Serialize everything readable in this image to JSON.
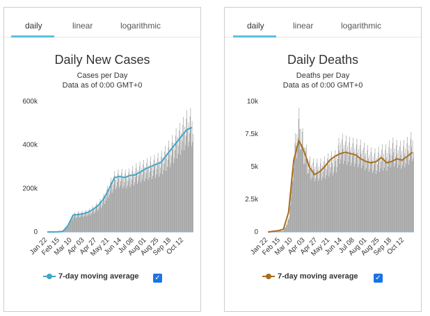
{
  "tabs": [
    "daily",
    "linear",
    "logarithmic"
  ],
  "legend_label": "7-day moving average",
  "checkbox_mark": "✓",
  "colors": {
    "tab_active": "#5bc0de",
    "cases_line": "#41a6c8",
    "deaths_line": "#a86e1e",
    "bars": "#999999",
    "checkbox": "#1a73e8"
  },
  "chart_data": [
    {
      "type": "bar",
      "title": "Daily New Cases",
      "subtitle": [
        "Cases per Day",
        "Data as of 0:00 GMT+0"
      ],
      "xlabel": "",
      "ylabel": "",
      "x_tick_labels": [
        "Jan 22",
        "Feb 15",
        "Mar 10",
        "Apr 03",
        "Apr 27",
        "May 21",
        "Jun 14",
        "Jul 08",
        "Aug 01",
        "Aug 25",
        "Sep 18",
        "Oct 12"
      ],
      "y_tick_labels": [
        "0",
        "200k",
        "400k",
        "600k"
      ],
      "ylim": [
        0,
        600000
      ],
      "series": [
        {
          "kind": "bar",
          "x_days": [
            0,
            30,
            40,
            50,
            60,
            70,
            80,
            90,
            100,
            110,
            120,
            130,
            140,
            150,
            160,
            170,
            180,
            190,
            200,
            210,
            220,
            230,
            240,
            250,
            260,
            270,
            280,
            282
          ],
          "values": [
            0,
            2000,
            30000,
            80000,
            85000,
            88000,
            95000,
            110000,
            130000,
            160000,
            210000,
            250000,
            260000,
            255000,
            262000,
            280000,
            290000,
            300000,
            310000,
            320000,
            330000,
            360000,
            390000,
            430000,
            460000,
            500000,
            510000,
            500000
          ]
        },
        {
          "kind": "line",
          "name": "7-day moving average",
          "x_days": [
            0,
            20,
            30,
            40,
            50,
            60,
            70,
            80,
            90,
            100,
            110,
            120,
            130,
            140,
            150,
            160,
            170,
            180,
            190,
            200,
            210,
            220,
            230,
            240,
            250,
            260,
            270,
            280
          ],
          "values": [
            0,
            1000,
            3000,
            30000,
            78000,
            80000,
            84000,
            92000,
            106000,
            125000,
            155000,
            200000,
            250000,
            255000,
            250000,
            260000,
            262000,
            275000,
            290000,
            300000,
            310000,
            320000,
            350000,
            380000,
            410000,
            440000,
            470000,
            480000
          ]
        }
      ]
    },
    {
      "type": "bar",
      "title": "Daily Deaths",
      "subtitle": [
        "Deaths per Day",
        "Data as of 0:00 GMT+0"
      ],
      "xlabel": "",
      "ylabel": "",
      "x_tick_labels": [
        "Jan 22",
        "Feb 15",
        "Mar 10",
        "Apr 03",
        "Apr 27",
        "May 21",
        "Jun 14",
        "Jul 08",
        "Aug 01",
        "Aug 25",
        "Sep 18",
        "Oct 12"
      ],
      "y_tick_labels": [
        "0",
        "2.5k",
        "5k",
        "7.5k",
        "10k"
      ],
      "ylim": [
        0,
        10000
      ],
      "series": [
        {
          "kind": "bar",
          "x_days": [
            0,
            30,
            40,
            50,
            60,
            70,
            80,
            90,
            100,
            110,
            120,
            130,
            140,
            150,
            160,
            170,
            180,
            190,
            200,
            210,
            220,
            230,
            240,
            250,
            260,
            270,
            280,
            282
          ],
          "values": [
            0,
            100,
            1000,
            6000,
            8500,
            6500,
            5200,
            5000,
            5000,
            5200,
            5500,
            5600,
            6800,
            6600,
            6500,
            6400,
            6300,
            6000,
            5800,
            5700,
            6000,
            6000,
            6500,
            6300,
            6200,
            6500,
            7000,
            6800
          ]
        },
        {
          "kind": "line",
          "name": "7-day moving average",
          "x_days": [
            0,
            20,
            30,
            40,
            50,
            60,
            70,
            80,
            90,
            100,
            110,
            120,
            130,
            140,
            150,
            160,
            170,
            180,
            190,
            200,
            210,
            220,
            230,
            240,
            250,
            260,
            270,
            280
          ],
          "values": [
            0,
            100,
            200,
            1500,
            5500,
            7000,
            6200,
            5000,
            4400,
            4600,
            5000,
            5500,
            5800,
            6000,
            6100,
            6000,
            5900,
            5600,
            5400,
            5300,
            5400,
            5700,
            5300,
            5400,
            5600,
            5500,
            5800,
            6100
          ]
        }
      ]
    }
  ]
}
